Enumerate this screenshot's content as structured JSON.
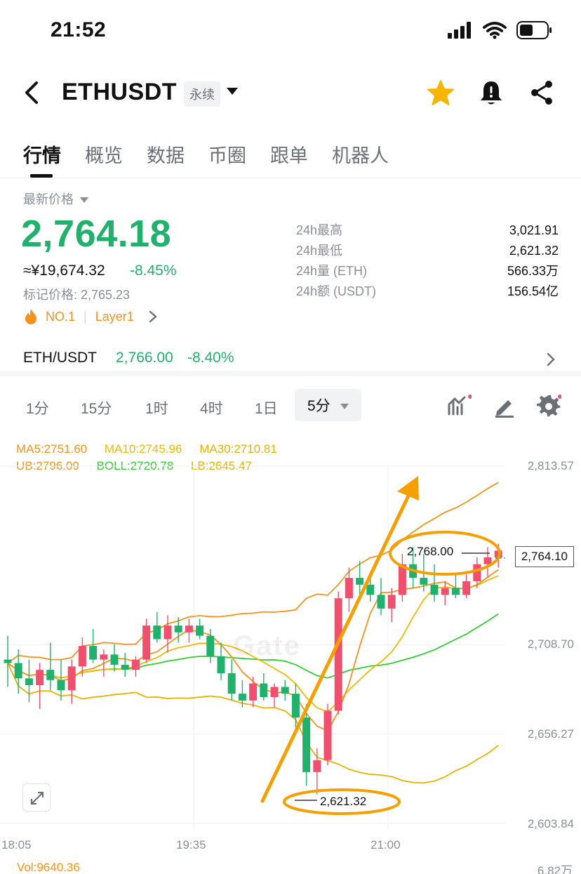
{
  "status": {
    "time": "21:52"
  },
  "header": {
    "symbol": "ETHUSDT",
    "contract_tag": "永续"
  },
  "tabs": [
    {
      "label": "行情",
      "active": true
    },
    {
      "label": "概览"
    },
    {
      "label": "数据"
    },
    {
      "label": "币圈"
    },
    {
      "label": "跟单"
    },
    {
      "label": "机器人"
    }
  ],
  "price": {
    "label": "最新价格",
    "last": "2,764.18",
    "cny": "≈¥19,674.32",
    "change_pct": "-8.45%",
    "mark": "标记价格: 2,765.23",
    "rank": "NO.1",
    "tag": "Layer1"
  },
  "stats": {
    "labels": [
      "24h最高",
      "24h最低",
      "24h量 (ETH)",
      "24h额 (USDT)"
    ],
    "values": [
      "3,021.91",
      "2,621.32",
      "566.33万",
      "156.54亿"
    ]
  },
  "spot": {
    "pair": "ETH/USDT",
    "price": "2,766.00",
    "change_pct": "-8.40%"
  },
  "intervals": [
    "1分",
    "15分",
    "1时",
    "4时",
    "1日",
    "5分"
  ],
  "chart": {
    "indicators": {
      "ma5": "MA5:2751.60",
      "ma10": "MA10:2745.96",
      "ma30": "MA30:2710.81",
      "ub": "UB:2796.09",
      "boll": "BOLL:2720.78",
      "lb": "LB:2645.47"
    },
    "price_axis": [
      "2,813.57",
      "2,708.70",
      "2,656.27",
      "2,603.84"
    ],
    "current_price": "2,764.10",
    "high_annotation": "2,768.00",
    "low_annotation": "2,621.32",
    "time_axis": [
      "18:05",
      "19:35",
      "21:00"
    ],
    "volume": "Vol:9640.36",
    "volume_max": "6.82万",
    "watermark": "Gate",
    "colors": {
      "up": "#f0506e",
      "down": "#20b26c",
      "ma5": "#f7931a",
      "ma10": "#f5b800",
      "ma30": "#e8b200",
      "boll_mid": "#33cc33",
      "annotation": "#f5a000"
    }
  },
  "chart_data": {
    "type": "candlestick",
    "x": [
      "18:05",
      "19:35",
      "21:00"
    ],
    "ylim": [
      2603.84,
      2813.57
    ],
    "candles": [
      [
        2700,
        2714,
        2684,
        2698
      ],
      [
        2698,
        2706,
        2680,
        2689
      ],
      [
        2689,
        2700,
        2675,
        2685
      ],
      [
        2685,
        2698,
        2671,
        2694
      ],
      [
        2694,
        2710,
        2682,
        2688
      ],
      [
        2688,
        2700,
        2676,
        2682
      ],
      [
        2682,
        2700,
        2674,
        2696
      ],
      [
        2696,
        2713,
        2690,
        2708
      ],
      [
        2708,
        2718,
        2698,
        2700
      ],
      [
        2700,
        2706,
        2690,
        2703
      ],
      [
        2703,
        2709,
        2693,
        2697
      ],
      [
        2697,
        2704,
        2690,
        2694
      ],
      [
        2694,
        2702,
        2690,
        2700
      ],
      [
        2700,
        2724,
        2698,
        2720
      ],
      [
        2720,
        2728,
        2710,
        2712
      ],
      [
        2712,
        2726,
        2704,
        2720
      ],
      [
        2720,
        2725,
        2710,
        2716
      ],
      [
        2716,
        2724,
        2710,
        2720
      ],
      [
        2720,
        2724,
        2712,
        2714
      ],
      [
        2714,
        2718,
        2698,
        2702
      ],
      [
        2702,
        2710,
        2688,
        2692
      ],
      [
        2692,
        2700,
        2676,
        2680
      ],
      [
        2680,
        2688,
        2672,
        2676
      ],
      [
        2676,
        2690,
        2672,
        2686
      ],
      [
        2686,
        2692,
        2676,
        2678
      ],
      [
        2678,
        2686,
        2672,
        2684
      ],
      [
        2684,
        2688,
        2676,
        2680
      ],
      [
        2680,
        2686,
        2660,
        2666
      ],
      [
        2666,
        2674,
        2626,
        2634
      ],
      [
        2634,
        2648,
        2621,
        2641
      ],
      [
        2641,
        2674,
        2638,
        2670
      ],
      [
        2670,
        2740,
        2668,
        2736
      ],
      [
        2736,
        2754,
        2728,
        2748
      ],
      [
        2748,
        2758,
        2738,
        2744
      ],
      [
        2744,
        2750,
        2734,
        2738
      ],
      [
        2738,
        2748,
        2726,
        2730
      ],
      [
        2730,
        2742,
        2722,
        2738
      ],
      [
        2738,
        2762,
        2734,
        2756
      ],
      [
        2756,
        2766,
        2742,
        2748
      ],
      [
        2748,
        2762,
        2740,
        2744
      ],
      [
        2744,
        2756,
        2734,
        2738
      ],
      [
        2738,
        2746,
        2732,
        2742
      ],
      [
        2742,
        2750,
        2736,
        2738
      ],
      [
        2738,
        2750,
        2736,
        2746
      ],
      [
        2746,
        2760,
        2742,
        2756
      ],
      [
        2756,
        2766,
        2748,
        2760
      ],
      [
        2760,
        2768,
        2754,
        2764
      ]
    ]
  }
}
